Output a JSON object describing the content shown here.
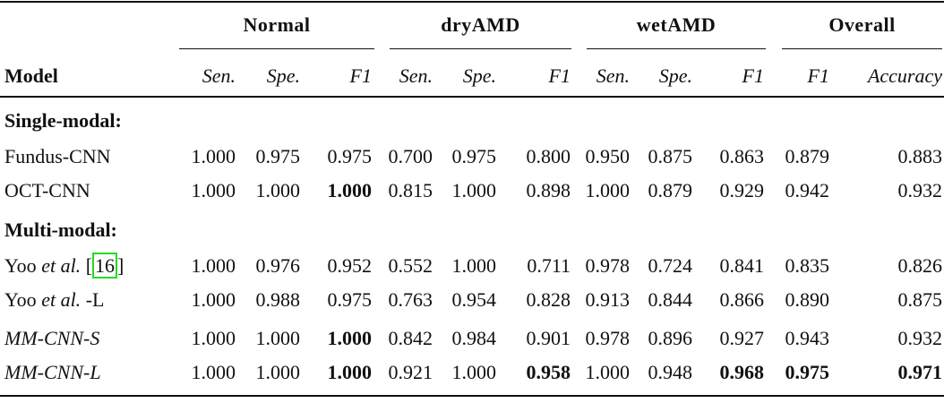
{
  "table": {
    "groups": [
      "Normal",
      "dryAMD",
      "wetAMD",
      "Overall"
    ],
    "model_header": "Model",
    "subheaders": [
      "Sen.",
      "Spe.",
      "F1",
      "Sen.",
      "Spe.",
      "F1",
      "Sen.",
      "Spe.",
      "F1",
      "F1",
      "Accuracy"
    ],
    "sections": [
      {
        "title": "Single-modal:",
        "rows": [
          {
            "model": "Fundus-CNN",
            "italic": false,
            "values": [
              "1.000",
              "0.975",
              "0.975",
              "0.700",
              "0.975",
              "0.800",
              "0.950",
              "0.875",
              "0.863",
              "0.879",
              "0.883"
            ],
            "bold": []
          },
          {
            "model": "OCT-CNN",
            "italic": false,
            "values": [
              "1.000",
              "1.000",
              "1.000",
              "0.815",
              "1.000",
              "0.898",
              "1.000",
              "0.879",
              "0.929",
              "0.942",
              "0.932"
            ],
            "bold": [
              2
            ]
          }
        ]
      },
      {
        "title": "Multi-modal:",
        "rows": [
          {
            "model": "Yoo",
            "etal": "et al.",
            "ref": "16",
            "values": [
              "1.000",
              "0.976",
              "0.952",
              "0.552",
              "1.000",
              "0.711",
              "0.978",
              "0.724",
              "0.841",
              "0.835",
              "0.826"
            ],
            "bold": []
          },
          {
            "model": "Yoo",
            "etal": "et al.",
            "suffix": "-L",
            "values": [
              "1.000",
              "0.988",
              "0.975",
              "0.763",
              "0.954",
              "0.828",
              "0.913",
              "0.844",
              "0.866",
              "0.890",
              "0.875"
            ],
            "bold": []
          },
          {
            "model": "MM-CNN-S",
            "italic": true,
            "values": [
              "1.000",
              "1.000",
              "1.000",
              "0.842",
              "0.984",
              "0.901",
              "0.978",
              "0.896",
              "0.927",
              "0.943",
              "0.932"
            ],
            "bold": [
              2
            ]
          },
          {
            "model": "MM-CNN-L",
            "italic": true,
            "values": [
              "1.000",
              "1.000",
              "1.000",
              "0.921",
              "1.000",
              "0.958",
              "1.000",
              "0.948",
              "0.968",
              "0.975",
              "0.971"
            ],
            "bold": [
              2,
              5,
              8,
              9,
              10
            ]
          }
        ]
      }
    ],
    "colors": {
      "citation_box": "#22dd22"
    }
  }
}
